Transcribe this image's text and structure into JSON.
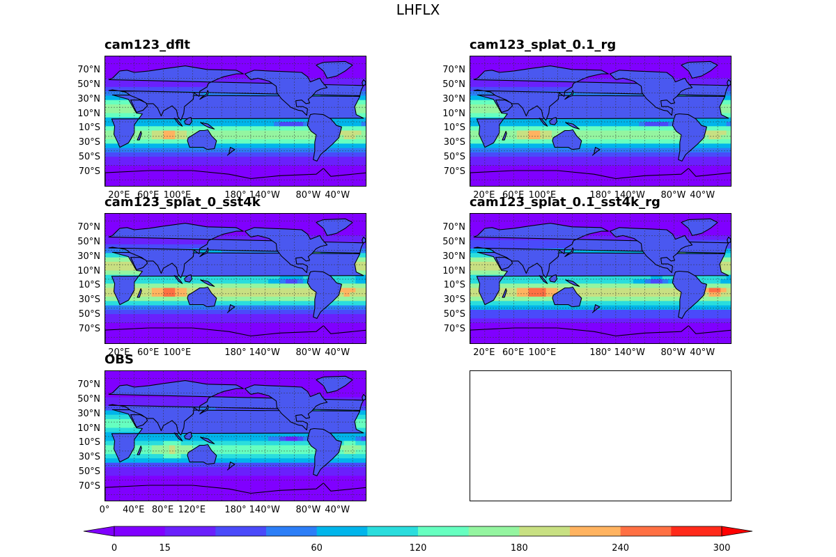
{
  "figure": {
    "title": "LHFLX"
  },
  "chart_data": {
    "type": "heatmap",
    "variable": "LHFLX",
    "panels": [
      {
        "id": "p1",
        "title": "cam123_dflt",
        "lat_ticks": [
          "70°N",
          "50°N",
          "30°N",
          "10°N",
          "10°S",
          "30°S",
          "50°S",
          "70°S"
        ],
        "lon_ticks": [
          "20°E",
          "60°E",
          "100°E",
          "180°",
          "140°W",
          "80°W",
          "40°W"
        ],
        "intensity": 1.0
      },
      {
        "id": "p2",
        "title": "cam123_splat_0.1_rg",
        "lat_ticks": [
          "70°N",
          "50°N",
          "30°N",
          "10°N",
          "10°S",
          "30°S",
          "50°S",
          "70°S"
        ],
        "lon_ticks": [
          "20°E",
          "60°E",
          "100°E",
          "180°",
          "140°W",
          "80°W",
          "40°W"
        ],
        "intensity": 1.0
      },
      {
        "id": "p3",
        "title": "cam123_splat_0_sst4k",
        "lat_ticks": [
          "70°N",
          "50°N",
          "30°N",
          "10°N",
          "10°S",
          "30°S",
          "50°S",
          "70°S"
        ],
        "lon_ticks": [
          "20°E",
          "60°E",
          "100°E",
          "180°",
          "140°W",
          "80°W",
          "40°W"
        ],
        "intensity": 1.15
      },
      {
        "id": "p4",
        "title": "cam123_splat_0.1_sst4k_rg",
        "lat_ticks": [
          "70°N",
          "50°N",
          "30°N",
          "10°N",
          "10°S",
          "30°S",
          "50°S",
          "70°S"
        ],
        "lon_ticks": [
          "20°E",
          "60°E",
          "100°E",
          "180°",
          "140°W",
          "80°W",
          "40°W"
        ],
        "intensity": 1.18
      },
      {
        "id": "p5",
        "title": "OBS",
        "lat_ticks": [
          "70°N",
          "50°N",
          "30°N",
          "10°N",
          "10°S",
          "30°S",
          "50°S",
          "70°S"
        ],
        "lon_ticks": [
          "0°",
          "40°E",
          "80°E",
          "120°E",
          "180°",
          "140°W",
          "80°W",
          "40°W"
        ],
        "intensity": 0.85
      }
    ],
    "colorbar": {
      "levels": [
        0,
        15,
        30,
        45,
        60,
        90,
        120,
        150,
        180,
        210,
        240,
        270,
        300
      ],
      "tick_labels": [
        "0",
        "15",
        "60",
        "120",
        "180",
        "240",
        "300"
      ],
      "colors": [
        "#8000ff",
        "#6a20fc",
        "#4a4afa",
        "#2c7ef7",
        "#00b5eb",
        "#2adddd",
        "#66ffc0",
        "#94f5a0",
        "#c8e082",
        "#ffb360",
        "#ff7043",
        "#ff2a1a"
      ],
      "under_color": "#8000ff",
      "over_color": "#ff0000",
      "extend": "both"
    }
  }
}
